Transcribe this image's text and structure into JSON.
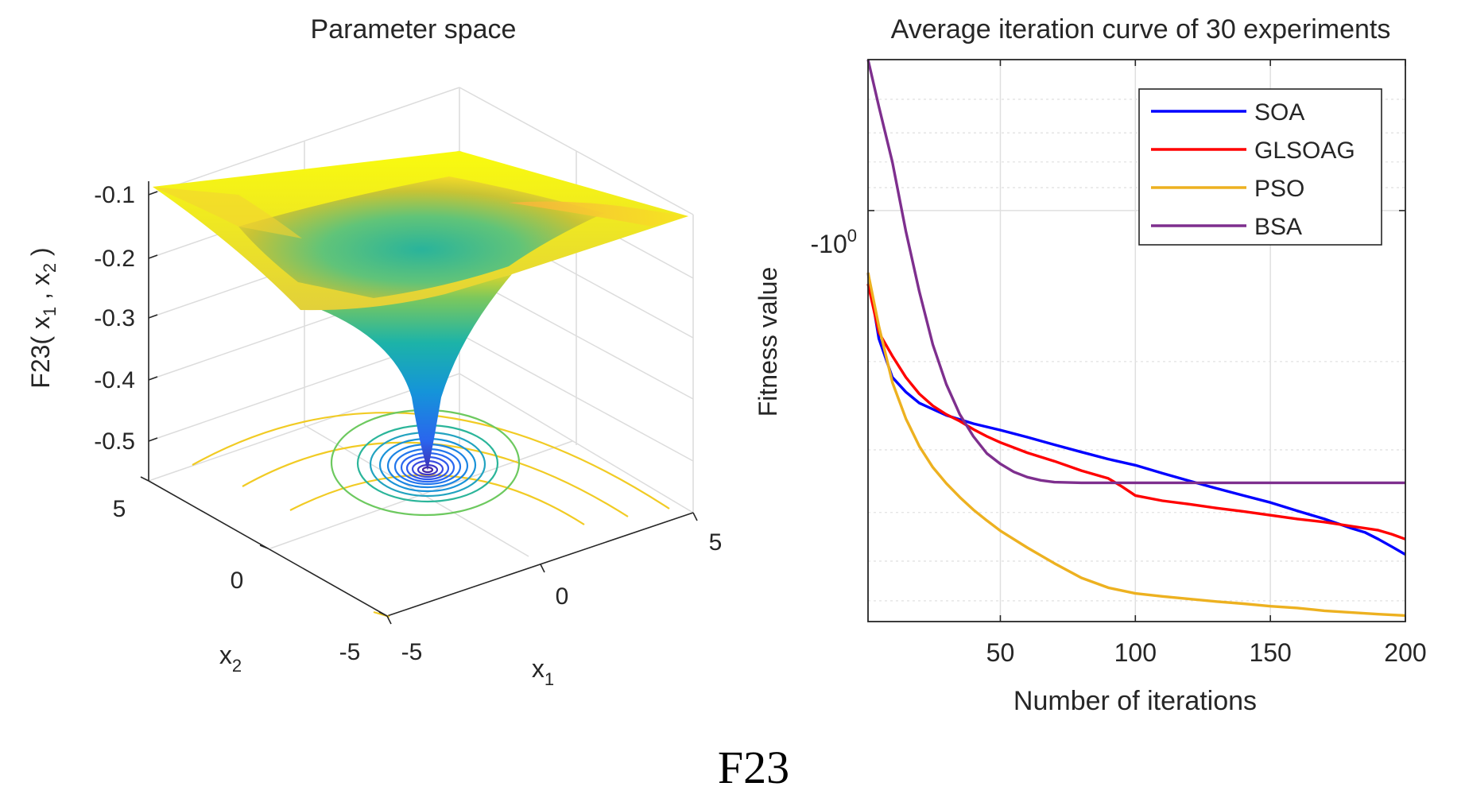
{
  "figure": {
    "caption": "F23"
  },
  "chart_data": [
    {
      "type": "surface3d",
      "title": "Parameter space",
      "xlabel": "x",
      "xlabel_sub": "1",
      "ylabel": "x",
      "ylabel_sub": "2",
      "zlabel": "F23( x 1 , x 2 )",
      "zlabel_parts": {
        "prefix": "F23( x",
        "sub1": "1",
        "mid": " , x",
        "sub2": "2",
        "suffix": " )"
      },
      "x_ticks": [
        "-5",
        "0",
        "5"
      ],
      "y_ticks": [
        "5",
        "0",
        "-5"
      ],
      "z_ticks": [
        "-0.1",
        "-0.2",
        "-0.3",
        "-0.4",
        "-0.5"
      ],
      "xlim": [
        -5,
        5
      ],
      "ylim": [
        -5,
        5
      ],
      "zlim": [
        -0.55,
        -0.05
      ],
      "colormap": "parula",
      "contour_levels": 12
    },
    {
      "type": "line",
      "title": "Average iteration curve of 30 experiments",
      "xlabel": "Number of iterations",
      "ylabel": "Fitness value",
      "xlim": [
        0,
        200
      ],
      "x_ticks": [
        "50",
        "100",
        "150",
        "200"
      ],
      "y_ticks": [
        "-10"
      ],
      "y_tick_sup": "0",
      "yscale": "log (negative)",
      "grid": true,
      "legend_position": "top-right",
      "series": [
        {
          "name": "SOA",
          "color": "#0000ff",
          "x": [
            1,
            5,
            10,
            15,
            20,
            30,
            40,
            50,
            60,
            70,
            80,
            90,
            100,
            110,
            120,
            130,
            140,
            150,
            160,
            170,
            180,
            185,
            190,
            195,
            200
          ],
          "y": [
            -1.33,
            -1.8,
            -2.15,
            -2.3,
            -2.42,
            -2.56,
            -2.66,
            -2.74,
            -2.83,
            -2.93,
            -3.03,
            -3.13,
            -3.22,
            -3.34,
            -3.46,
            -3.58,
            -3.7,
            -3.82,
            -3.97,
            -4.12,
            -4.3,
            -4.38,
            -4.52,
            -4.68,
            -4.85
          ]
        },
        {
          "name": "GLSOAG",
          "color": "#ff0000",
          "x": [
            1,
            5,
            10,
            15,
            20,
            25,
            30,
            35,
            40,
            45,
            50,
            60,
            70,
            80,
            90,
            95,
            100,
            110,
            120,
            130,
            140,
            150,
            160,
            170,
            180,
            190,
            195,
            200
          ],
          "y": [
            -1.4,
            -1.75,
            -1.95,
            -2.15,
            -2.32,
            -2.45,
            -2.55,
            -2.63,
            -2.73,
            -2.82,
            -2.9,
            -3.04,
            -3.16,
            -3.3,
            -3.42,
            -3.55,
            -3.7,
            -3.79,
            -3.85,
            -3.92,
            -3.98,
            -4.05,
            -4.12,
            -4.18,
            -4.26,
            -4.34,
            -4.42,
            -4.52
          ]
        },
        {
          "name": "PSO",
          "color": "#edb120",
          "x": [
            1,
            5,
            10,
            15,
            20,
            25,
            30,
            35,
            40,
            45,
            50,
            60,
            70,
            80,
            90,
            100,
            110,
            120,
            130,
            140,
            150,
            160,
            170,
            180,
            190,
            200
          ],
          "y": [
            -1.33,
            -1.7,
            -2.2,
            -2.6,
            -2.95,
            -3.25,
            -3.5,
            -3.73,
            -3.95,
            -4.15,
            -4.35,
            -4.7,
            -5.05,
            -5.4,
            -5.65,
            -5.8,
            -5.88,
            -5.95,
            -6.02,
            -6.08,
            -6.15,
            -6.2,
            -6.28,
            -6.33,
            -6.38,
            -6.42
          ]
        },
        {
          "name": "BSA",
          "color": "#7e2f8e",
          "x": [
            1,
            5,
            10,
            15,
            20,
            25,
            30,
            35,
            40,
            45,
            50,
            55,
            60,
            65,
            70,
            80,
            100,
            150,
            200
          ],
          "y": [
            -0.5,
            -0.62,
            -0.8,
            -1.1,
            -1.45,
            -1.85,
            -2.22,
            -2.55,
            -2.82,
            -3.05,
            -3.2,
            -3.32,
            -3.4,
            -3.45,
            -3.48,
            -3.49,
            -3.49,
            -3.49,
            -3.49
          ]
        }
      ]
    }
  ]
}
